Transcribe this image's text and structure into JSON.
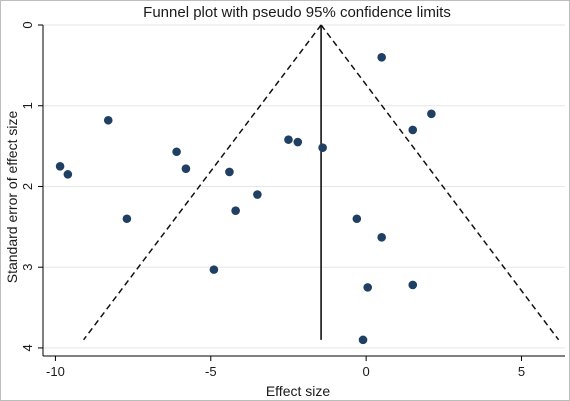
{
  "chart_data": {
    "type": "scatter",
    "title": "Funnel plot with pseudo 95% confidence limits",
    "xlabel": "Effect size",
    "ylabel": "Standard error of effect size",
    "xlim": [
      -10.4,
      6.4
    ],
    "ylim": [
      0,
      4.1
    ],
    "y_reversed": true,
    "x_ticks": [
      -10,
      -5,
      0,
      5
    ],
    "x_tick_labels": [
      "-10",
      "-5",
      "0",
      "5"
    ],
    "y_ticks": [
      0,
      1,
      2,
      3,
      4
    ],
    "y_tick_labels": [
      "0",
      "1",
      "2",
      "3",
      "4"
    ],
    "grid": "horizontal",
    "legend": "none",
    "pooled_effect": -1.45,
    "funnel_se_max": 3.9,
    "pooled_line_se_range": [
      0,
      3.9
    ],
    "marker_color": "#1f3f63",
    "points": [
      {
        "x": 0.5,
        "y": 0.4
      },
      {
        "x": 2.1,
        "y": 1.1
      },
      {
        "x": 1.5,
        "y": 1.3
      },
      {
        "x": -8.3,
        "y": 1.18
      },
      {
        "x": -9.85,
        "y": 1.75
      },
      {
        "x": -9.6,
        "y": 1.85
      },
      {
        "x": -6.1,
        "y": 1.57
      },
      {
        "x": -5.8,
        "y": 1.78
      },
      {
        "x": -4.4,
        "y": 1.82
      },
      {
        "x": -2.5,
        "y": 1.42
      },
      {
        "x": -2.2,
        "y": 1.45
      },
      {
        "x": -1.4,
        "y": 1.52
      },
      {
        "x": -7.7,
        "y": 2.4
      },
      {
        "x": -4.2,
        "y": 2.3
      },
      {
        "x": -3.5,
        "y": 2.1
      },
      {
        "x": -0.3,
        "y": 2.4
      },
      {
        "x": 0.5,
        "y": 2.63
      },
      {
        "x": -4.9,
        "y": 3.03
      },
      {
        "x": 0.05,
        "y": 3.25
      },
      {
        "x": 1.5,
        "y": 3.22
      },
      {
        "x": -0.1,
        "y": 3.9
      }
    ]
  }
}
